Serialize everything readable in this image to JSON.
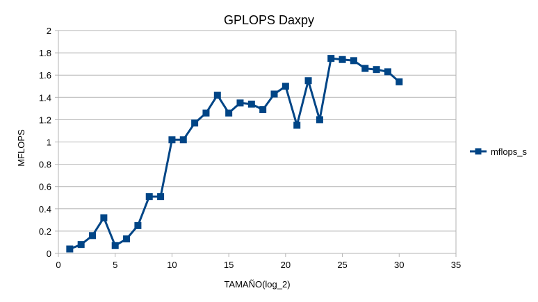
{
  "chart_data": {
    "type": "line",
    "title": "GPLOPS Daxpy",
    "xlabel": "TAMAÑO(log_2)",
    "ylabel": "MFLOPS",
    "xlim": [
      0,
      35
    ],
    "ylim": [
      0,
      2
    ],
    "xticks": [
      0,
      5,
      10,
      15,
      20,
      25,
      30,
      35
    ],
    "yticks": [
      0,
      0.2,
      0.4,
      0.6,
      0.8,
      1,
      1.2,
      1.4,
      1.6,
      1.8,
      2
    ],
    "grid": true,
    "legend_position": "right",
    "series": [
      {
        "name": "mflops_s",
        "color": "#004586",
        "marker": "square",
        "x": [
          1,
          2,
          3,
          4,
          5,
          6,
          7,
          8,
          9,
          10,
          11,
          12,
          13,
          14,
          15,
          16,
          17,
          18,
          19,
          20,
          21,
          22,
          23,
          24,
          25,
          26,
          27,
          28,
          29,
          30
        ],
        "y": [
          0.04,
          0.08,
          0.16,
          0.32,
          0.07,
          0.13,
          0.25,
          0.51,
          0.51,
          1.02,
          1.02,
          1.17,
          1.26,
          1.42,
          1.26,
          1.35,
          1.34,
          1.29,
          1.43,
          1.5,
          1.15,
          1.55,
          1.2,
          1.75,
          1.74,
          1.73,
          1.66,
          1.65,
          1.63,
          1.54
        ]
      }
    ]
  }
}
